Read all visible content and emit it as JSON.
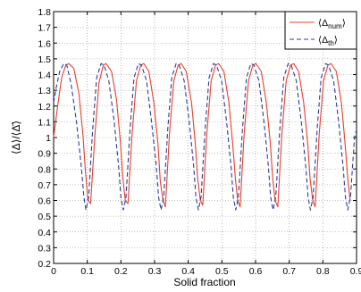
{
  "chart_data": {
    "type": "line",
    "xlabel": "Solid fraction",
    "ylabel": "⟨Δ⟩/⟨Δ̄⟩",
    "xlim": [
      0,
      0.9
    ],
    "ylim": [
      0.2,
      1.8
    ],
    "x_ticks": [
      "0",
      "0.1",
      "0.2",
      "0.3",
      "0.4",
      "0.5",
      "0.6",
      "0.7",
      "0.8",
      "0.9"
    ],
    "y_ticks": [
      "0.2",
      "0.3",
      "0.4",
      "0.5",
      "0.6",
      "0.7",
      "0.8",
      "0.9",
      "1",
      "1.1",
      "1.2",
      "1.3",
      "1.4",
      "1.5",
      "1.6",
      "1.7",
      "1.8"
    ],
    "grid": true,
    "grid_style": "dotted",
    "legend_position": "top-right",
    "legend": {
      "series_a_main": "⟨Δ",
      "series_a_sub": "num",
      "series_a_close": "⟩",
      "series_b_main": "⟨Δ",
      "series_b_sub": "th",
      "series_b_close": "⟩"
    },
    "series": [
      {
        "color": "#e8402a",
        "dash": "solid",
        "x": [
          0.0,
          0.012,
          0.024,
          0.036,
          0.045,
          0.06,
          0.075,
          0.087,
          0.094,
          0.102,
          0.11,
          0.122,
          0.135,
          0.148,
          0.156,
          0.172,
          0.187,
          0.198,
          0.206,
          0.213,
          0.221,
          0.233,
          0.246,
          0.259,
          0.268,
          0.283,
          0.298,
          0.31,
          0.317,
          0.325,
          0.332,
          0.344,
          0.357,
          0.37,
          0.379,
          0.394,
          0.41,
          0.421,
          0.428,
          0.436,
          0.443,
          0.455,
          0.468,
          0.481,
          0.49,
          0.506,
          0.521,
          0.532,
          0.54,
          0.547,
          0.554,
          0.566,
          0.579,
          0.592,
          0.601,
          0.617,
          0.632,
          0.644,
          0.651,
          0.658,
          0.666,
          0.678,
          0.691,
          0.704,
          0.713,
          0.728,
          0.743,
          0.755,
          0.762,
          0.77,
          0.777,
          0.789,
          0.802,
          0.815,
          0.824,
          0.84,
          0.855,
          0.866,
          0.874,
          0.881
        ],
        "y": [
          1.0,
          1.2,
          1.38,
          1.46,
          1.47,
          1.44,
          1.28,
          1.02,
          0.8,
          0.6,
          0.58,
          1.0,
          1.35,
          1.46,
          1.47,
          1.42,
          1.24,
          0.98,
          0.74,
          0.6,
          0.58,
          1.02,
          1.36,
          1.46,
          1.47,
          1.42,
          1.22,
          0.96,
          0.72,
          0.6,
          0.56,
          1.02,
          1.36,
          1.46,
          1.47,
          1.42,
          1.22,
          0.96,
          0.74,
          0.6,
          0.57,
          1.02,
          1.36,
          1.46,
          1.47,
          1.42,
          1.22,
          0.96,
          0.74,
          0.6,
          0.56,
          1.02,
          1.36,
          1.46,
          1.47,
          1.42,
          1.22,
          0.96,
          0.74,
          0.6,
          0.56,
          1.02,
          1.36,
          1.46,
          1.47,
          1.42,
          1.22,
          0.96,
          0.74,
          0.6,
          0.56,
          1.02,
          1.36,
          1.46,
          1.47,
          1.42,
          1.22,
          0.96,
          0.74,
          0.6
        ]
      },
      {
        "color": "#2c3c9c",
        "dash": "dashed",
        "x": [
          0.0,
          0.008,
          0.018,
          0.03,
          0.039,
          0.052,
          0.068,
          0.082,
          0.09,
          0.096,
          0.104,
          0.116,
          0.128,
          0.141,
          0.15,
          0.164,
          0.18,
          0.193,
          0.2,
          0.207,
          0.215,
          0.227,
          0.239,
          0.252,
          0.261,
          0.276,
          0.291,
          0.305,
          0.312,
          0.319,
          0.327,
          0.339,
          0.351,
          0.364,
          0.373,
          0.388,
          0.403,
          0.416,
          0.423,
          0.43,
          0.438,
          0.45,
          0.462,
          0.475,
          0.484,
          0.499,
          0.514,
          0.527,
          0.534,
          0.541,
          0.549,
          0.561,
          0.573,
          0.586,
          0.595,
          0.61,
          0.625,
          0.638,
          0.645,
          0.652,
          0.66,
          0.672,
          0.684,
          0.697,
          0.706,
          0.721,
          0.736,
          0.749,
          0.756,
          0.763,
          0.771,
          0.783,
          0.795,
          0.808,
          0.817,
          0.832,
          0.847,
          0.86,
          0.867,
          0.874,
          0.882,
          0.894,
          0.9
        ],
        "y": [
          1.22,
          1.32,
          1.42,
          1.47,
          1.46,
          1.34,
          1.1,
          0.82,
          0.62,
          0.54,
          0.62,
          1.05,
          1.38,
          1.47,
          1.46,
          1.36,
          1.1,
          0.82,
          0.62,
          0.54,
          0.62,
          1.05,
          1.38,
          1.47,
          1.46,
          1.36,
          1.1,
          0.82,
          0.62,
          0.54,
          0.62,
          1.05,
          1.38,
          1.47,
          1.46,
          1.36,
          1.1,
          0.82,
          0.62,
          0.54,
          0.62,
          1.05,
          1.38,
          1.47,
          1.46,
          1.36,
          1.1,
          0.82,
          0.62,
          0.54,
          0.62,
          1.05,
          1.38,
          1.47,
          1.46,
          1.36,
          1.1,
          0.82,
          0.62,
          0.54,
          0.62,
          1.05,
          1.38,
          1.47,
          1.46,
          1.36,
          1.1,
          0.82,
          0.62,
          0.54,
          0.62,
          1.05,
          1.38,
          1.47,
          1.46,
          1.36,
          1.1,
          0.82,
          0.62,
          0.54,
          0.62,
          1.0,
          1.05
        ]
      }
    ]
  }
}
